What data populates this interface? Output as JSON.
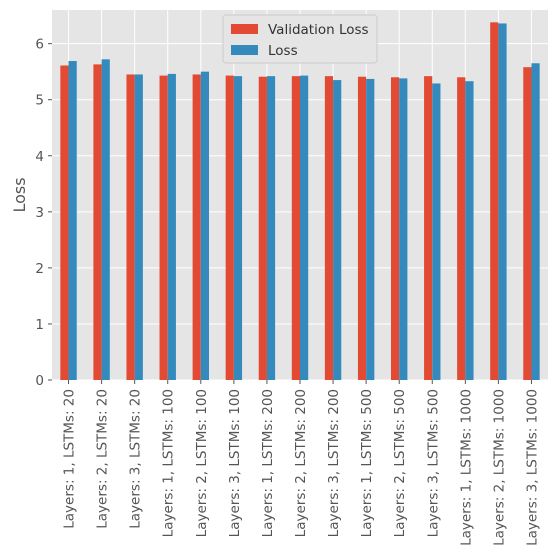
{
  "chart_data": {
    "type": "bar",
    "title": "",
    "xlabel": "",
    "ylabel": "Loss",
    "ylim": [
      0,
      6.6
    ],
    "yticks": [
      0,
      1,
      2,
      3,
      4,
      5,
      6
    ],
    "grid": true,
    "legend_position": "top-center",
    "categories": [
      "Layers: 1, LSTMs: 20",
      "Layers: 2, LSTMs: 20",
      "Layers: 3, LSTMs: 20",
      "Layers: 1, LSTMs: 100",
      "Layers: 2, LSTMs: 100",
      "Layers: 3, LSTMs: 100",
      "Layers: 1, LSTMs: 200",
      "Layers: 2, LSTMs: 200",
      "Layers: 3, LSTMs: 200",
      "Layers: 1, LSTMs: 500",
      "Layers: 2, LSTMs: 500",
      "Layers: 3, LSTMs: 500",
      "Layers: 1, LSTMs: 1000",
      "Layers: 2, LSTMs: 1000",
      "Layers: 3, LSTMs: 1000"
    ],
    "series": [
      {
        "name": "Validation Loss",
        "color": "#E24A33",
        "values": [
          5.61,
          5.63,
          5.45,
          5.43,
          5.45,
          5.43,
          5.41,
          5.42,
          5.42,
          5.41,
          5.4,
          5.42,
          5.4,
          6.38,
          5.58
        ]
      },
      {
        "name": "Loss",
        "color": "#348ABD",
        "values": [
          5.69,
          5.72,
          5.45,
          5.46,
          5.5,
          5.42,
          5.42,
          5.43,
          5.35,
          5.37,
          5.38,
          5.29,
          5.33,
          6.36,
          5.65
        ]
      }
    ]
  }
}
